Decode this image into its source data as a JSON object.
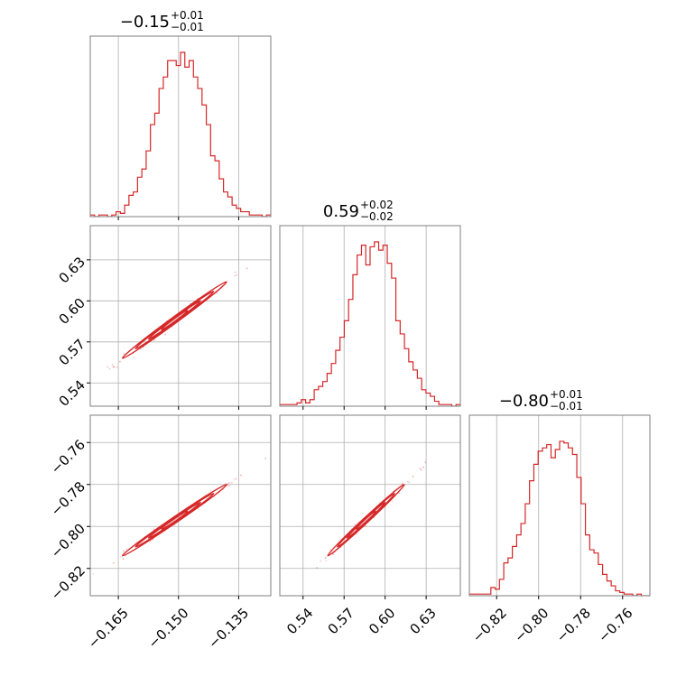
{
  "chart_data": {
    "type": "corner",
    "color": "#d62728",
    "parameters": [
      {
        "title_value": "−0.15",
        "title_plus": "+0.01",
        "title_minus": "−0.01",
        "center": -0.151,
        "sigma": 0.0065,
        "range": [
          -0.172,
          -0.127
        ],
        "ticks": [
          -0.165,
          -0.15,
          -0.135
        ],
        "tick_labels": [
          "−0.165",
          "−0.150",
          "−0.135"
        ]
      },
      {
        "title_value": "0.59",
        "title_plus": "+0.02",
        "title_minus": "−0.02",
        "center": 0.586,
        "sigma": 0.014,
        "range": [
          0.523,
          0.655
        ],
        "ticks": [
          0.54,
          0.57,
          0.6,
          0.63
        ],
        "tick_labels": [
          "0.54",
          "0.57",
          "0.60",
          "0.63"
        ]
      },
      {
        "title_value": "−0.80",
        "title_plus": "+0.01",
        "title_minus": "−0.01",
        "center": -0.797,
        "sigma": 0.0085,
        "range": [
          -0.833,
          -0.747
        ],
        "ticks": [
          -0.82,
          -0.8,
          -0.78,
          -0.76
        ],
        "tick_labels": [
          "−0.82",
          "−0.80",
          "−0.78",
          "−0.76"
        ]
      }
    ],
    "histograms": [
      [
        0.01,
        0.0,
        0.01,
        0.01,
        0.0,
        0.01,
        0.03,
        0.02,
        0.07,
        0.13,
        0.15,
        0.24,
        0.29,
        0.4,
        0.56,
        0.63,
        0.78,
        0.85,
        0.95,
        0.95,
        0.92,
        1.0,
        0.91,
        0.95,
        0.85,
        0.78,
        0.68,
        0.56,
        0.37,
        0.34,
        0.23,
        0.15,
        0.12,
        0.07,
        0.05,
        0.03,
        0.03,
        0.01,
        0.01,
        0.01,
        0.0,
        0.01
      ],
      [
        0.01,
        0.01,
        0.01,
        0.01,
        0.02,
        0.04,
        0.02,
        0.04,
        0.1,
        0.12,
        0.15,
        0.2,
        0.26,
        0.34,
        0.42,
        0.52,
        0.65,
        0.8,
        0.92,
        0.98,
        0.86,
        0.97,
        1.0,
        0.95,
        0.98,
        0.87,
        0.78,
        0.52,
        0.44,
        0.35,
        0.27,
        0.22,
        0.17,
        0.1,
        0.08,
        0.06,
        0.03,
        0.01,
        0.01,
        0.01,
        0.0,
        0.01
      ],
      [
        0.01,
        0.01,
        0.01,
        0.01,
        0.01,
        0.05,
        0.04,
        0.1,
        0.2,
        0.23,
        0.3,
        0.37,
        0.44,
        0.56,
        0.7,
        0.8,
        0.88,
        0.9,
        0.92,
        0.84,
        0.89,
        0.94,
        0.93,
        0.9,
        0.86,
        0.72,
        0.56,
        0.37,
        0.28,
        0.26,
        0.19,
        0.13,
        0.09,
        0.06,
        0.03,
        0.02,
        0.01,
        0.01,
        0.0,
        0.01,
        0.0,
        0.0
      ]
    ],
    "correlations": {
      "1-0": 0.995,
      "2-0": 0.995,
      "2-1": 0.995
    },
    "contour_levels_sigma": [
      0.5,
      1.0,
      1.5,
      2.0
    ],
    "grid": true
  }
}
